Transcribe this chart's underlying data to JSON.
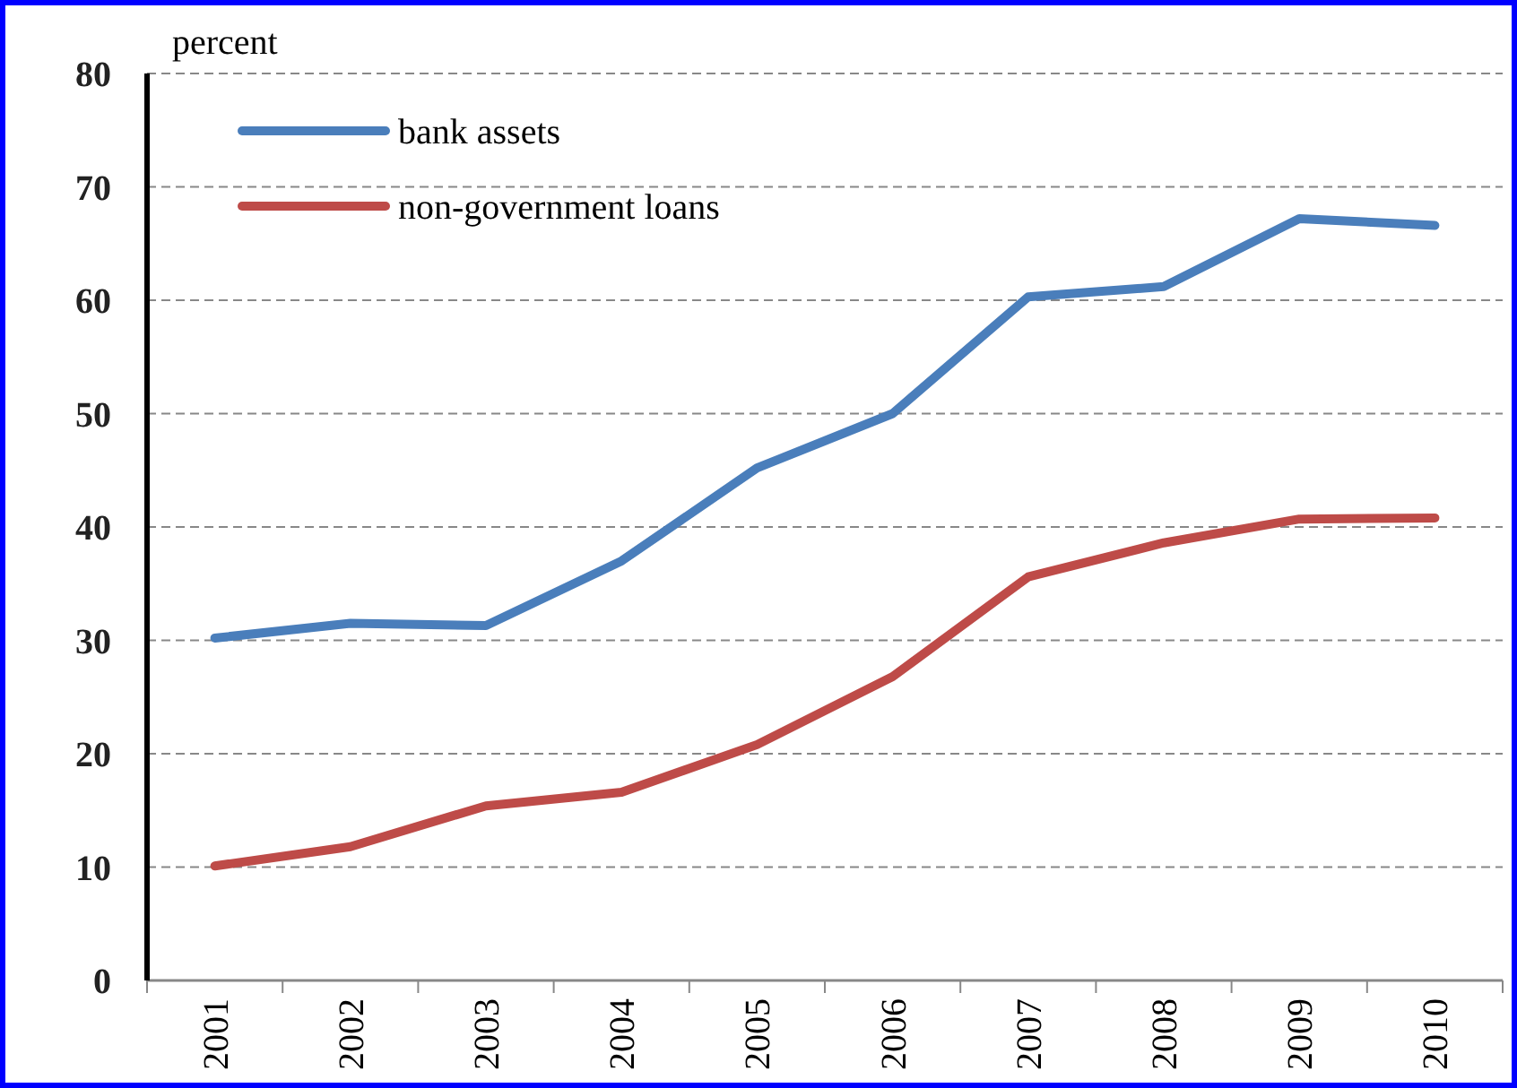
{
  "chart_data": {
    "type": "line",
    "ylabel": "percent",
    "categories": [
      "2001",
      "2002",
      "2003",
      "2004",
      "2005",
      "2006",
      "2007",
      "2008",
      "2009",
      "2010"
    ],
    "series": [
      {
        "name": "bank assets",
        "color": "#4a7ebb",
        "values": [
          30.2,
          31.5,
          31.3,
          37,
          45.2,
          50,
          60.3,
          61.2,
          67.2,
          66.6
        ]
      },
      {
        "name": "non-government loans",
        "color": "#be4b48",
        "values": [
          10.1,
          11.8,
          15.4,
          16.6,
          20.8,
          26.8,
          35.6,
          38.6,
          40.7,
          40.8
        ]
      }
    ],
    "ylim": [
      0,
      80
    ],
    "yticks": [
      0,
      10,
      20,
      30,
      40,
      50,
      60,
      70,
      80
    ],
    "grid": "y",
    "legend": "top left",
    "marker": "none",
    "line_style": "solid"
  }
}
